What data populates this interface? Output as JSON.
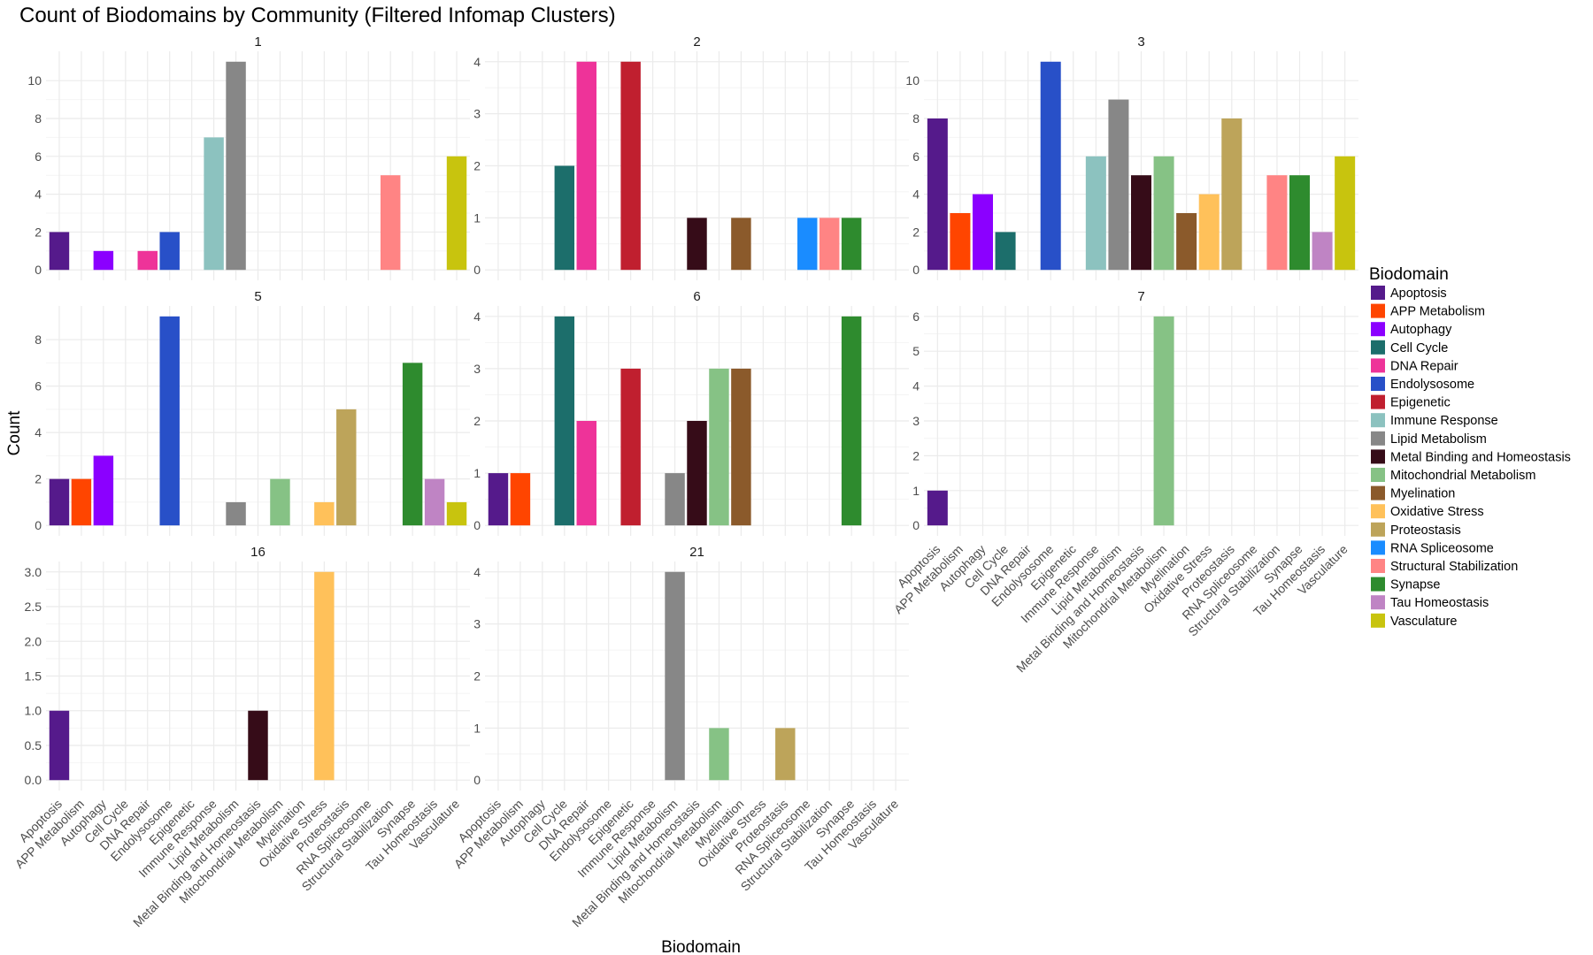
{
  "chart_data": {
    "type": "bar",
    "title": "Count of Biodomains by Community (Filtered Infomap Clusters)",
    "xlabel": "Biodomain",
    "ylabel": "Count",
    "legend_title": "Biodomain",
    "legend_position": "right",
    "grid": true,
    "categories": [
      "Apoptosis",
      "APP Metabolism",
      "Autophagy",
      "Cell Cycle",
      "DNA Repair",
      "Endolysosome",
      "Epigenetic",
      "Immune Response",
      "Lipid Metabolism",
      "Metal Binding and Homeostasis",
      "Mitochondrial Metabolism",
      "Myelination",
      "Oxidative Stress",
      "Proteostasis",
      "RNA Spliceosome",
      "Structural Stabilization",
      "Synapse",
      "Tau Homeostasis",
      "Vasculature"
    ],
    "colors": [
      "#551A8B",
      "#FF4500",
      "#8B00FF",
      "#1C6E6B",
      "#EE3399",
      "#2850C8",
      "#C01F2F",
      "#8CC2BF",
      "#878787",
      "#360C18",
      "#86C285",
      "#8B5A2B",
      "#FFC15A",
      "#BDA45A",
      "#1A8CFF",
      "#FF8484",
      "#2E8B2E",
      "#BF84C4",
      "#C8C40E"
    ],
    "panels": [
      {
        "name": "1",
        "ylim": [
          0,
          11
        ],
        "yticks": [
          "0",
          "2",
          "4",
          "6",
          "8",
          "10"
        ],
        "ytick_values": [
          0,
          2,
          4,
          6,
          8,
          10
        ],
        "values": [
          2,
          0,
          1,
          0,
          1,
          2,
          0,
          7,
          11,
          0,
          0,
          0,
          0,
          0,
          0,
          5,
          0,
          0,
          6
        ]
      },
      {
        "name": "2",
        "ylim": [
          0,
          4
        ],
        "yticks": [
          "0",
          "1",
          "2",
          "3",
          "4"
        ],
        "ytick_values": [
          0,
          1,
          2,
          3,
          4
        ],
        "values": [
          0,
          0,
          0,
          2,
          4,
          0,
          4,
          0,
          0,
          1,
          0,
          1,
          0,
          0,
          1,
          1,
          1,
          0,
          0
        ]
      },
      {
        "name": "3",
        "ylim": [
          0,
          11
        ],
        "yticks": [
          "0",
          "2",
          "4",
          "6",
          "8",
          "10"
        ],
        "ytick_values": [
          0,
          2,
          4,
          6,
          8,
          10
        ],
        "values": [
          8,
          3,
          4,
          2,
          0,
          11,
          0,
          6,
          9,
          5,
          6,
          3,
          4,
          8,
          0,
          5,
          5,
          2,
          6
        ]
      },
      {
        "name": "5",
        "ylim": [
          0,
          9
        ],
        "yticks": [
          "0",
          "2",
          "4",
          "6",
          "8"
        ],
        "ytick_values": [
          0,
          2,
          4,
          6,
          8
        ],
        "values": [
          2,
          2,
          3,
          0,
          0,
          9,
          0,
          0,
          1,
          0,
          2,
          0,
          1,
          5,
          0,
          0,
          7,
          2,
          1
        ]
      },
      {
        "name": "6",
        "ylim": [
          0,
          4
        ],
        "yticks": [
          "0",
          "1",
          "2",
          "3",
          "4"
        ],
        "ytick_values": [
          0,
          1,
          2,
          3,
          4
        ],
        "values": [
          1,
          1,
          0,
          4,
          2,
          0,
          3,
          0,
          1,
          2,
          3,
          3,
          0,
          0,
          0,
          0,
          4,
          0,
          0
        ]
      },
      {
        "name": "7",
        "ylim": [
          0,
          6
        ],
        "yticks": [
          "0",
          "1",
          "2",
          "3",
          "4",
          "5",
          "6"
        ],
        "ytick_values": [
          0,
          1,
          2,
          3,
          4,
          5,
          6
        ],
        "values": [
          1,
          0,
          0,
          0,
          0,
          0,
          0,
          0,
          0,
          0,
          6,
          0,
          0,
          0,
          0,
          0,
          0,
          0,
          0
        ]
      },
      {
        "name": "16",
        "ylim": [
          0,
          3
        ],
        "yticks": [
          "0.0",
          "0.5",
          "1.0",
          "1.5",
          "2.0",
          "2.5",
          "3.0"
        ],
        "ytick_values": [
          0,
          0.5,
          1,
          1.5,
          2,
          2.5,
          3
        ],
        "values": [
          1,
          0,
          0,
          0,
          0,
          0,
          0,
          0,
          0,
          1,
          0,
          0,
          3,
          0,
          0,
          0,
          0,
          0,
          0
        ]
      },
      {
        "name": "21",
        "ylim": [
          0,
          4
        ],
        "yticks": [
          "0",
          "1",
          "2",
          "3",
          "4"
        ],
        "ytick_values": [
          0,
          1,
          2,
          3,
          4
        ],
        "values": [
          0,
          0,
          0,
          0,
          0,
          0,
          0,
          0,
          4,
          0,
          1,
          0,
          0,
          1,
          0,
          0,
          0,
          0,
          0
        ]
      }
    ]
  }
}
